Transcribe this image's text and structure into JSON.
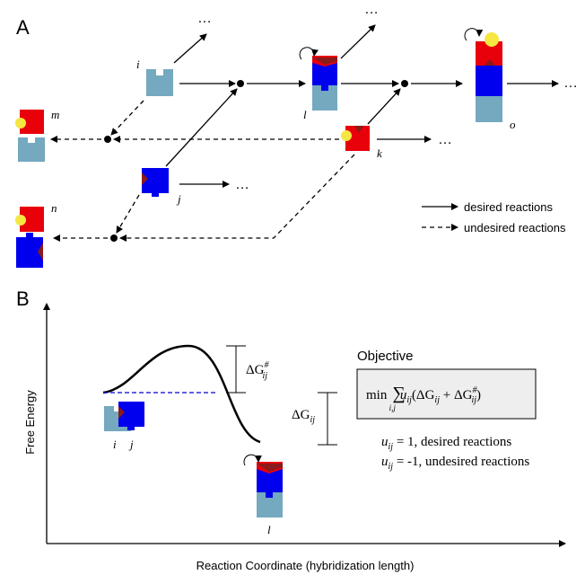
{
  "panel_a": {
    "label": "A",
    "species": {
      "i": "i",
      "j": "j",
      "k": "k",
      "l": "l",
      "m": "m",
      "n": "n",
      "o": "o"
    },
    "ellipses": [
      "…",
      "…",
      "…",
      "…",
      "…",
      "…"
    ],
    "legend": [
      "desired reactions",
      "undesired reactions"
    ]
  },
  "panel_b": {
    "label": "B",
    "y_axis": "Free Energy",
    "x_axis": "Reaction Coordinate (hybridization length)",
    "species": [
      "i",
      "j",
      "l"
    ],
    "barrier": {
      "symbol": "ΔG",
      "sup": "#",
      "sub": "ij"
    },
    "gap": {
      "symbol": "ΔG",
      "sub": "ij"
    },
    "objective": {
      "title": "Objective",
      "formula": {
        "min": "min",
        "sum": "∑",
        "sum_index": "i,j",
        "u": "u",
        "u_index": "ij",
        "open": "(ΔG",
        "dg1_index": "ij",
        "plus": " + ΔG",
        "dg2_sup": "#",
        "dg2_index": "ij",
        "close": ")"
      },
      "weights": [
        {
          "u": "u",
          "sub": "ij",
          "rest": " = 1, desired reactions"
        },
        {
          "u": "u",
          "sub": "ij",
          "rest": " = -1, undesired reactions"
        }
      ]
    }
  }
}
